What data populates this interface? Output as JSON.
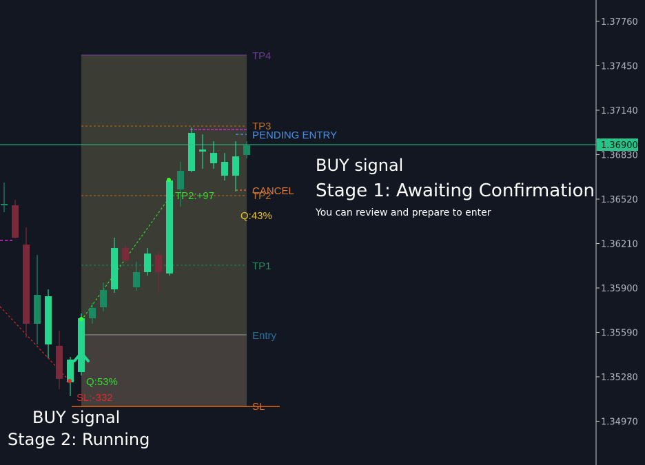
{
  "colors": {
    "background": "#131722",
    "bull": "#26d68f",
    "bull_dark": "#1a8a62",
    "bear": "#7a2a3a",
    "tp_zone": "#4a4a3a",
    "entry_zone": "#5a5048",
    "cancel": "#e07a3a",
    "sl": "#e06a1a",
    "pending": "#4a90e2",
    "tp4": "#6a3d8f",
    "tp3": "#b8702a",
    "tp1": "#1f8a5a",
    "current_price": "#26c489",
    "quality_green": "#33dd33",
    "quality_yellow": "#e6c22a",
    "magenta": "#d12cd1",
    "sl_red": "#e02a2a"
  },
  "price_axis": {
    "ticks": [
      "1.37760",
      "1.37450",
      "1.37140",
      "1.36830",
      "1.36520",
      "1.36210",
      "1.35900",
      "1.35590",
      "1.35280",
      "1.34970"
    ],
    "current_price": "1.36900"
  },
  "levels": {
    "tp4": "TP4",
    "tp3": "TP3",
    "pending_entry": "PENDING ENTRY",
    "cancel": "CANCEL",
    "tp2": "TP2",
    "tp1": "TP1",
    "entry": "Entry",
    "sl": "SL"
  },
  "trade_annotations": {
    "tp2_hit": "TP2:+97",
    "quality_1": "Q:43%",
    "quality_2": "Q:53%",
    "sl_loss": "SL:-332"
  },
  "notes": {
    "signal_1_title": "BUY signal",
    "signal_1_stage": "Stage 1: Awaiting Confirmation",
    "signal_1_sub": "You can review and prepare to enter",
    "signal_2_title": "BUY signal",
    "signal_2_stage": "Stage 2: Running"
  }
}
